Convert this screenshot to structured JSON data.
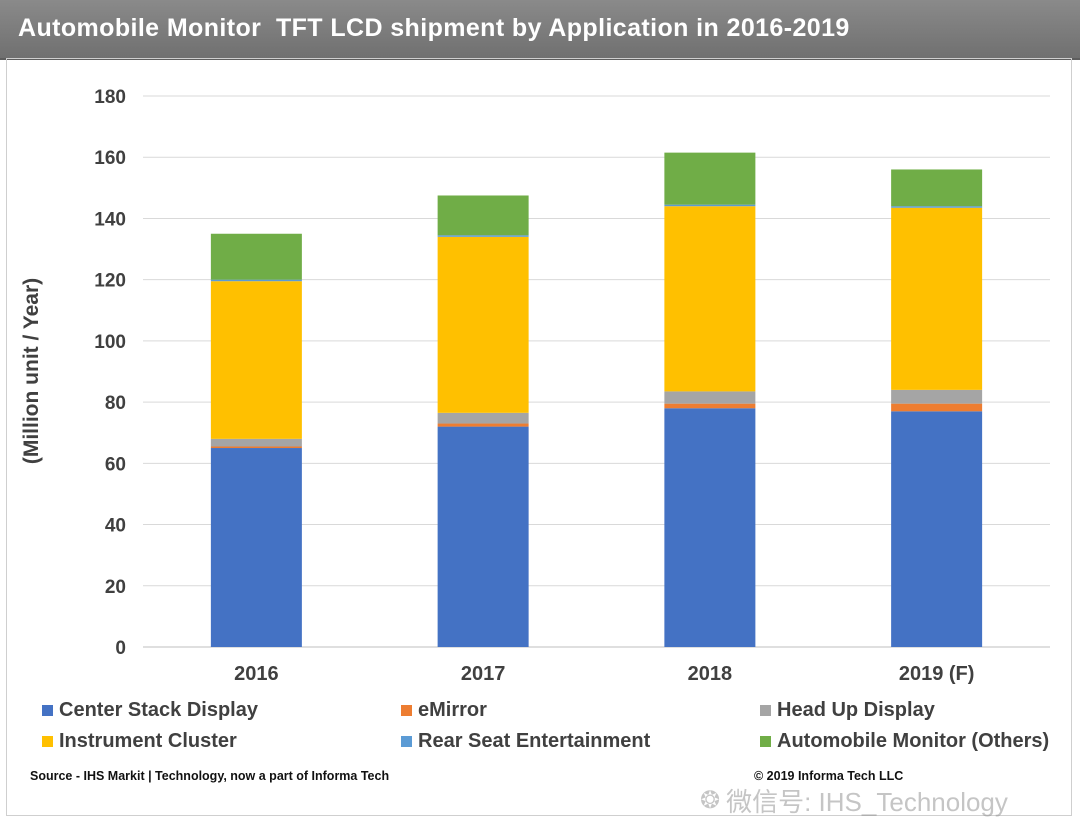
{
  "title": "Automobile Monitor  TFT LCD shipment by Application in 2016-2019",
  "source": "Source - IHS Markit | Technology,  now a part of Informa  Tech",
  "copyright": "© 2019 Informa  Tech LLC",
  "watermark": {
    "icon": "wechat-icon",
    "text": "微信号: IHS_Technology"
  },
  "chart_data": {
    "type": "bar",
    "stacked": true,
    "title": "Automobile Monitor  TFT LCD shipment by Application in 2016-2019",
    "ylabel": "(Million unit / Year)",
    "xlabel": "",
    "ylim": [
      0,
      180
    ],
    "yticks": [
      0,
      20,
      40,
      60,
      80,
      100,
      120,
      140,
      160,
      180
    ],
    "grid": true,
    "legend_position": "bottom",
    "categories": [
      "2016",
      "2017",
      "2018",
      "2019 (F)"
    ],
    "series": [
      {
        "name": "Center Stack Display",
        "color": "#4472C4",
        "values": [
          65,
          72,
          78,
          77
        ]
      },
      {
        "name": "eMirror",
        "color": "#ED7D31",
        "values": [
          0.5,
          1,
          1.5,
          2.5
        ]
      },
      {
        "name": "Head Up Display",
        "color": "#A5A5A5",
        "values": [
          2.5,
          3.5,
          4,
          4.5
        ]
      },
      {
        "name": "Instrument Cluster",
        "color": "#FFC000",
        "values": [
          51.5,
          57.5,
          60.5,
          59.5
        ]
      },
      {
        "name": "Rear Seat Entertainment",
        "color": "#5B9BD5",
        "values": [
          0.5,
          0.5,
          0.5,
          0.5
        ]
      },
      {
        "name": "Automobile Monitor (Others)",
        "color": "#70AD47",
        "values": [
          15,
          13,
          17,
          12
        ]
      }
    ]
  }
}
